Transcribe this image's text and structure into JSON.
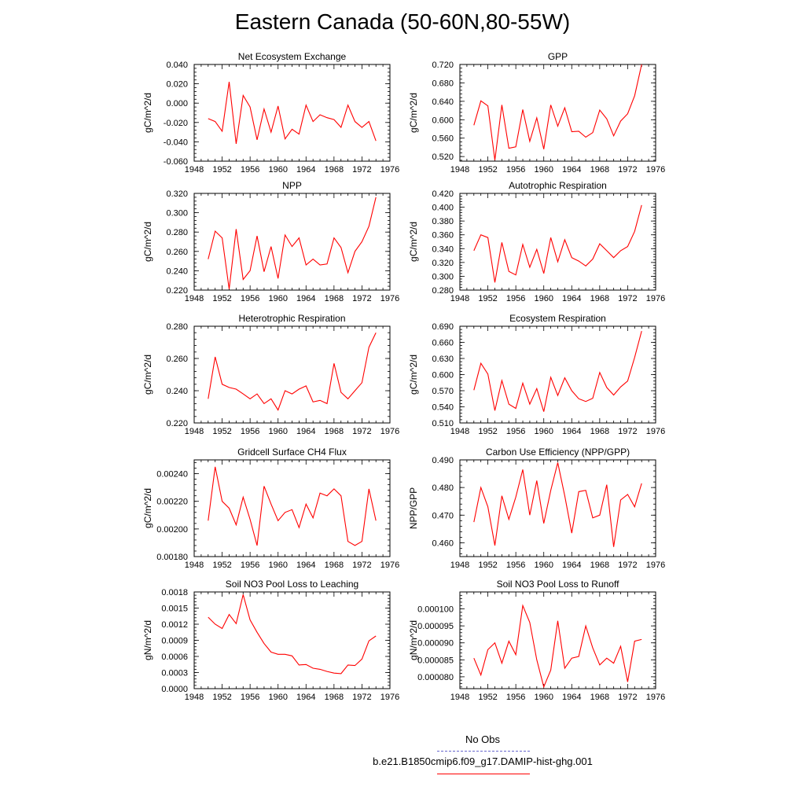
{
  "figure_title": "Eastern Canada (50-60N,80-55W)",
  "legend": [
    {
      "label": "No Obs",
      "color": "#6666cc",
      "dash": "dashed"
    },
    {
      "label": "b.e21.B1850cmip6.f09_g17.DAMIP-hist-ghg.001",
      "color": "#ff0000",
      "dash": "solid"
    }
  ],
  "chart_data": [
    {
      "type": "line",
      "title": "Net Ecosystem Exchange",
      "ylabel": "gC/m^2/d",
      "xlim": [
        1948,
        1976
      ],
      "x_ticks": [
        1948,
        1952,
        1956,
        1960,
        1964,
        1968,
        1972,
        1976
      ],
      "ylim": [
        -0.06,
        0.04
      ],
      "y_ticks": [
        "-0.060",
        "-0.040",
        "-0.020",
        "0.000",
        "0.020",
        "0.040"
      ],
      "color": "#ff0000",
      "x": [
        1950,
        1951,
        1952,
        1953,
        1954,
        1955,
        1956,
        1957,
        1958,
        1959,
        1960,
        1961,
        1962,
        1963,
        1964,
        1965,
        1966,
        1967,
        1968,
        1969,
        1970,
        1971,
        1972,
        1973,
        1974
      ],
      "values": [
        -0.016,
        -0.019,
        -0.029,
        0.022,
        -0.042,
        0.008,
        -0.004,
        -0.038,
        -0.006,
        -0.03,
        -0.003,
        -0.037,
        -0.027,
        -0.032,
        -0.002,
        -0.019,
        -0.012,
        -0.015,
        -0.017,
        -0.025,
        -0.002,
        -0.019,
        -0.025,
        -0.019,
        -0.039
      ]
    },
    {
      "type": "line",
      "title": "GPP",
      "ylabel": "gC/m^2/d",
      "xlim": [
        1948,
        1976
      ],
      "x_ticks": [
        1948,
        1952,
        1956,
        1960,
        1964,
        1968,
        1972,
        1976
      ],
      "ylim": [
        0.51,
        0.72
      ],
      "y_ticks": [
        "0.520",
        "0.560",
        "0.600",
        "0.640",
        "0.680",
        "0.720"
      ],
      "color": "#ff0000",
      "x": [
        1950,
        1951,
        1952,
        1953,
        1954,
        1955,
        1956,
        1957,
        1958,
        1959,
        1960,
        1961,
        1962,
        1963,
        1964,
        1965,
        1966,
        1967,
        1968,
        1969,
        1970,
        1971,
        1972,
        1973,
        1974
      ],
      "values": [
        0.588,
        0.641,
        0.63,
        0.512,
        0.632,
        0.538,
        0.541,
        0.622,
        0.553,
        0.604,
        0.536,
        0.632,
        0.586,
        0.626,
        0.574,
        0.575,
        0.562,
        0.572,
        0.621,
        0.602,
        0.565,
        0.597,
        0.613,
        0.652,
        0.72
      ]
    },
    {
      "type": "line",
      "title": "NPP",
      "ylabel": "gC/m^2/d",
      "xlim": [
        1948,
        1976
      ],
      "x_ticks": [
        1948,
        1952,
        1956,
        1960,
        1964,
        1968,
        1972,
        1976
      ],
      "ylim": [
        0.22,
        0.32
      ],
      "y_ticks": [
        "0.220",
        "0.240",
        "0.260",
        "0.280",
        "0.300",
        "0.320"
      ],
      "color": "#ff0000",
      "x": [
        1950,
        1951,
        1952,
        1953,
        1954,
        1955,
        1956,
        1957,
        1958,
        1959,
        1960,
        1961,
        1962,
        1963,
        1964,
        1965,
        1966,
        1967,
        1968,
        1969,
        1970,
        1971,
        1972,
        1973,
        1974
      ],
      "values": [
        0.252,
        0.281,
        0.274,
        0.221,
        0.283,
        0.231,
        0.24,
        0.276,
        0.239,
        0.265,
        0.232,
        0.277,
        0.265,
        0.274,
        0.246,
        0.252,
        0.246,
        0.247,
        0.274,
        0.264,
        0.238,
        0.26,
        0.27,
        0.286,
        0.316
      ]
    },
    {
      "type": "line",
      "title": "Autotrophic Respiration",
      "ylabel": "gC/m^2/d",
      "xlim": [
        1948,
        1976
      ],
      "x_ticks": [
        1948,
        1952,
        1956,
        1960,
        1964,
        1968,
        1972,
        1976
      ],
      "ylim": [
        0.28,
        0.42
      ],
      "y_ticks": [
        "0.280",
        "0.300",
        "0.320",
        "0.340",
        "0.360",
        "0.380",
        "0.400",
        "0.420"
      ],
      "color": "#ff0000",
      "x": [
        1950,
        1951,
        1952,
        1953,
        1954,
        1955,
        1956,
        1957,
        1958,
        1959,
        1960,
        1961,
        1962,
        1963,
        1964,
        1965,
        1966,
        1967,
        1968,
        1969,
        1970,
        1971,
        1972,
        1973,
        1974
      ],
      "values": [
        0.337,
        0.36,
        0.356,
        0.291,
        0.349,
        0.307,
        0.302,
        0.346,
        0.313,
        0.339,
        0.304,
        0.356,
        0.321,
        0.353,
        0.327,
        0.322,
        0.315,
        0.325,
        0.347,
        0.337,
        0.327,
        0.337,
        0.343,
        0.365,
        0.403
      ]
    },
    {
      "type": "line",
      "title": "Heterotrophic Respiration",
      "ylabel": "gC/m^2/d",
      "xlim": [
        1948,
        1976
      ],
      "x_ticks": [
        1948,
        1952,
        1956,
        1960,
        1964,
        1968,
        1972,
        1976
      ],
      "ylim": [
        0.22,
        0.28
      ],
      "y_ticks": [
        "0.220",
        "0.240",
        "0.260",
        "0.280"
      ],
      "color": "#ff0000",
      "x": [
        1950,
        1951,
        1952,
        1953,
        1954,
        1955,
        1956,
        1957,
        1958,
        1959,
        1960,
        1961,
        1962,
        1963,
        1964,
        1965,
        1966,
        1967,
        1968,
        1969,
        1970,
        1971,
        1972,
        1973,
        1974
      ],
      "values": [
        0.235,
        0.261,
        0.244,
        0.242,
        0.241,
        0.238,
        0.235,
        0.238,
        0.232,
        0.235,
        0.228,
        0.24,
        0.238,
        0.241,
        0.243,
        0.233,
        0.234,
        0.232,
        0.257,
        0.239,
        0.235,
        0.24,
        0.245,
        0.267,
        0.276
      ]
    },
    {
      "type": "line",
      "title": "Ecosystem Respiration",
      "ylabel": "gC/m^2/d",
      "xlim": [
        1948,
        1976
      ],
      "x_ticks": [
        1948,
        1952,
        1956,
        1960,
        1964,
        1968,
        1972,
        1976
      ],
      "ylim": [
        0.51,
        0.69
      ],
      "y_ticks": [
        "0.510",
        "0.540",
        "0.570",
        "0.600",
        "0.630",
        "0.660",
        "0.690"
      ],
      "color": "#ff0000",
      "x": [
        1950,
        1951,
        1952,
        1953,
        1954,
        1955,
        1956,
        1957,
        1958,
        1959,
        1960,
        1961,
        1962,
        1963,
        1964,
        1965,
        1966,
        1967,
        1968,
        1969,
        1970,
        1971,
        1972,
        1973,
        1974
      ],
      "values": [
        0.571,
        0.621,
        0.601,
        0.533,
        0.589,
        0.545,
        0.537,
        0.584,
        0.545,
        0.574,
        0.531,
        0.595,
        0.561,
        0.594,
        0.57,
        0.555,
        0.55,
        0.556,
        0.604,
        0.576,
        0.562,
        0.577,
        0.588,
        0.632,
        0.681
      ]
    },
    {
      "type": "line",
      "title": "Gridcell Surface CH4 Flux",
      "ylabel": "gC/m^2/d",
      "xlim": [
        1948,
        1976
      ],
      "x_ticks": [
        1948,
        1952,
        1956,
        1960,
        1964,
        1968,
        1972,
        1976
      ],
      "ylim": [
        0.0018,
        0.0025
      ],
      "y_ticks": [
        "0.00180",
        "0.00200",
        "0.00220",
        "0.00240"
      ],
      "color": "#ff0000",
      "x": [
        1950,
        1951,
        1952,
        1953,
        1954,
        1955,
        1956,
        1957,
        1958,
        1959,
        1960,
        1961,
        1962,
        1963,
        1964,
        1965,
        1966,
        1967,
        1968,
        1969,
        1970,
        1971,
        1972,
        1973,
        1974
      ],
      "values": [
        0.00206,
        0.00245,
        0.0022,
        0.00215,
        0.00203,
        0.00223,
        0.00207,
        0.00188,
        0.00231,
        0.00218,
        0.00206,
        0.00212,
        0.00214,
        0.00201,
        0.00218,
        0.00208,
        0.00226,
        0.00224,
        0.00229,
        0.00224,
        0.00191,
        0.00188,
        0.00191,
        0.00229,
        0.00206
      ]
    },
    {
      "type": "line",
      "title": "Carbon Use Efficiency (NPP/GPP)",
      "ylabel": "NPP/GPP",
      "xlim": [
        1948,
        1976
      ],
      "x_ticks": [
        1948,
        1952,
        1956,
        1960,
        1964,
        1968,
        1972,
        1976
      ],
      "ylim": [
        0.455,
        0.49
      ],
      "y_ticks": [
        "0.460",
        "0.470",
        "0.480",
        "0.490"
      ],
      "color": "#ff0000",
      "x": [
        1950,
        1951,
        1952,
        1953,
        1954,
        1955,
        1956,
        1957,
        1958,
        1959,
        1960,
        1961,
        1962,
        1963,
        1964,
        1965,
        1966,
        1967,
        1968,
        1969,
        1970,
        1971,
        1972,
        1973,
        1974
      ],
      "values": [
        0.4675,
        0.48,
        0.473,
        0.459,
        0.477,
        0.4685,
        0.4765,
        0.4865,
        0.47,
        0.4825,
        0.467,
        0.479,
        0.489,
        0.477,
        0.4635,
        0.4785,
        0.479,
        0.469,
        0.47,
        0.481,
        0.4585,
        0.4755,
        0.4775,
        0.473,
        0.4815
      ]
    },
    {
      "type": "line",
      "title": "Soil NO3 Pool Loss to Leaching",
      "ylabel": "gN/m^2/d",
      "xlim": [
        1948,
        1976
      ],
      "x_ticks": [
        1948,
        1952,
        1956,
        1960,
        1964,
        1968,
        1972,
        1976
      ],
      "ylim": [
        0,
        0.0018
      ],
      "y_ticks": [
        "0.0000",
        "0.0003",
        "0.0006",
        "0.0009",
        "0.0012",
        "0.0015",
        "0.0018"
      ],
      "color": "#ff0000",
      "x": [
        1950,
        1951,
        1952,
        1953,
        1954,
        1955,
        1956,
        1957,
        1958,
        1959,
        1960,
        1961,
        1962,
        1963,
        1964,
        1965,
        1966,
        1967,
        1968,
        1969,
        1970,
        1971,
        1972,
        1973,
        1974
      ],
      "values": [
        0.00133,
        0.0012,
        0.00112,
        0.00138,
        0.00121,
        0.00175,
        0.00128,
        0.00105,
        0.00084,
        0.00068,
        0.00064,
        0.00064,
        0.00061,
        0.00044,
        0.00045,
        0.00038,
        0.00036,
        0.00032,
        0.00029,
        0.00028,
        0.00044,
        0.00043,
        0.00055,
        0.00089,
        0.00098
      ]
    },
    {
      "type": "line",
      "title": "Soil NO3 Pool Loss to Runoff",
      "ylabel": "gN/m^2/d",
      "xlim": [
        1948,
        1976
      ],
      "x_ticks": [
        1948,
        1952,
        1956,
        1960,
        1964,
        1968,
        1972,
        1976
      ],
      "ylim": [
        7.65e-05,
        0.000105
      ],
      "y_ticks": [
        "0.000080",
        "0.000085",
        "0.000090",
        "0.000095",
        "0.000100"
      ],
      "color": "#ff0000",
      "x": [
        1950,
        1951,
        1952,
        1953,
        1954,
        1955,
        1956,
        1957,
        1958,
        1959,
        1960,
        1961,
        1962,
        1963,
        1964,
        1965,
        1966,
        1967,
        1968,
        1969,
        1970,
        1971,
        1972,
        1973,
        1974
      ],
      "values": [
        8.55e-05,
        8.05e-05,
        8.8e-05,
        9e-05,
        8.4e-05,
        9.05e-05,
        8.65e-05,
        0.000101,
        9.6e-05,
        8.5e-05,
        7.7e-05,
        8.2e-05,
        9.65e-05,
        8.25e-05,
        8.55e-05,
        8.6e-05,
        9.5e-05,
        8.85e-05,
        8.35e-05,
        8.55e-05,
        8.4e-05,
        8.9e-05,
        7.85e-05,
        9.05e-05,
        9.1e-05
      ]
    }
  ]
}
